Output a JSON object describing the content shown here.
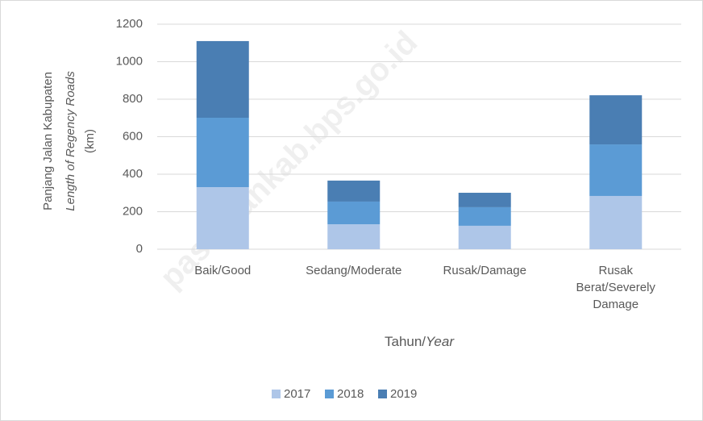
{
  "chart_data": {
    "type": "stacked_bar",
    "y_label": [
      "Panjang Jalan Kabupaten",
      "Length of Regency Roads",
      "(km)"
    ],
    "x_label": [
      "Tahun/",
      "Year"
    ],
    "watermark": "pasamankab.bps.go.id",
    "categories": [
      "Baik/Good",
      "Sedang/Moderate",
      "Rusak/Damage",
      "Rusak Berat/Severely Damage"
    ],
    "series": [
      {
        "name": "2017",
        "color": "#aec6e8",
        "values": [
          331,
          133,
          125,
          284
        ]
      },
      {
        "name": "2018",
        "color": "#5b9bd5",
        "values": [
          370,
          121,
          99,
          275
        ]
      },
      {
        "name": "2019",
        "color": "#4a7eb3",
        "values": [
          409,
          112,
          77,
          262
        ]
      }
    ],
    "ylim": [
      0,
      1200
    ],
    "yticks": [
      0,
      200,
      400,
      600,
      800,
      1000,
      1200
    ],
    "grid": true,
    "legend": "bottom"
  }
}
